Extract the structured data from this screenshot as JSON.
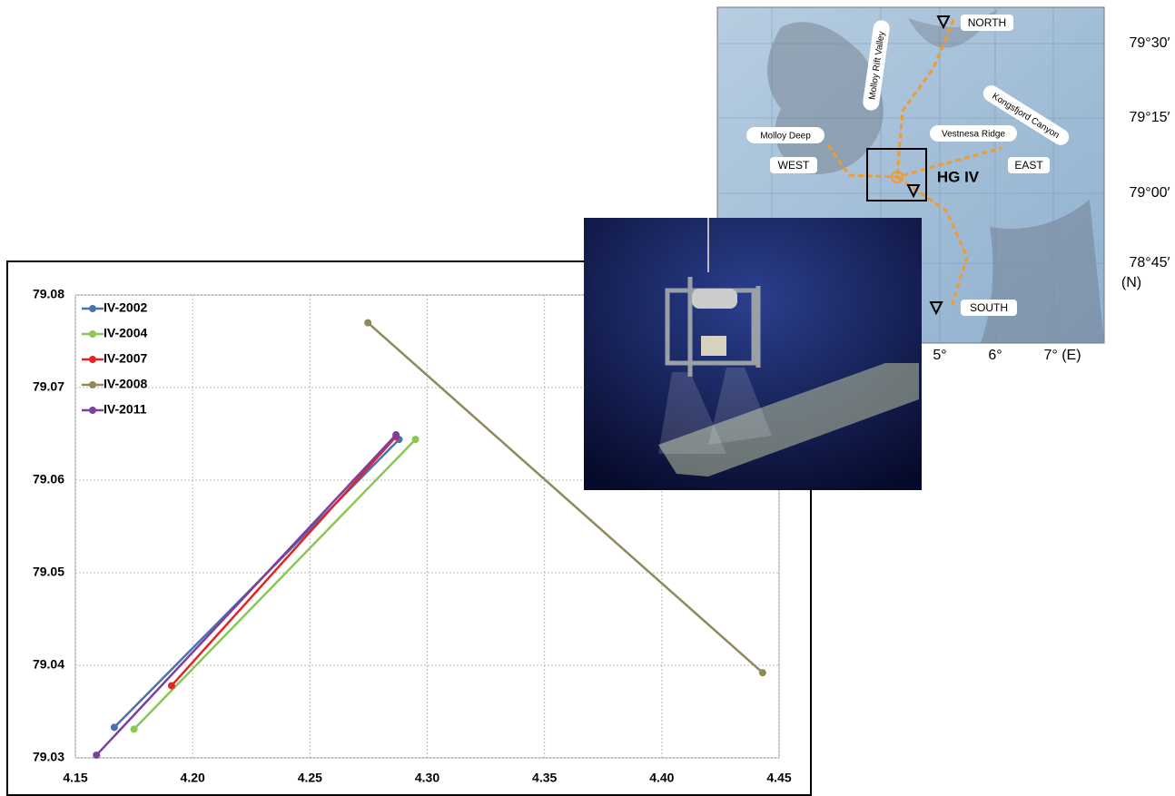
{
  "chart_data": {
    "type": "line",
    "series": [
      {
        "name": "IV-2002",
        "color": "#4a72b0",
        "x": [
          4.1666,
          4.288
        ],
        "values": [
          79.0333,
          79.0644
        ]
      },
      {
        "name": "IV-2004",
        "color": "#8cc653",
        "x": [
          4.175,
          4.295
        ],
        "values": [
          79.0331,
          79.0644
        ]
      },
      {
        "name": "IV-2007",
        "color": "#e0252a",
        "x": [
          4.191,
          4.2867
        ],
        "values": [
          79.0378,
          79.0647
        ]
      },
      {
        "name": "IV-2008",
        "color": "#8e8a5a",
        "x": [
          4.2747,
          4.443
        ],
        "values": [
          79.077,
          79.0392
        ]
      },
      {
        "name": "IV-2011",
        "color": "#7b3fa0",
        "x": [
          4.159,
          4.2867
        ],
        "values": [
          79.0303,
          79.0649
        ]
      }
    ],
    "xlim": [
      4.15,
      4.45
    ],
    "xticks": [
      4.15,
      {
        "value": 4.2,
        "label": "4.20"
      },
      4.25,
      {
        "value": 4.3,
        "label": "4.30"
      },
      4.35,
      {
        "value": 4.4,
        "label": "4.40"
      },
      4.45
    ],
    "ylim": [
      79.03,
      79.08
    ],
    "yticks": [
      79.03,
      79.04,
      79.05,
      79.06,
      79.07,
      79.08
    ],
    "grid": true,
    "legend": "upper left"
  },
  "map": {
    "north": "NORTH",
    "south": "SOUTH",
    "east": "EAST",
    "west": "WEST",
    "site": "HG IV",
    "molloy_deep": "Molloy Deep",
    "rift_valley": "Molloy Rift Valley",
    "vestnesa": "Vestnesa Ridge",
    "kongsfjord": "Kongsfjord Canyon",
    "lat": [
      "79°30′",
      "79°15′",
      "79°00′",
      "78°45′"
    ],
    "lat_unit": "(N)",
    "lon": [
      "5°",
      "6°",
      "7° (E)"
    ]
  }
}
